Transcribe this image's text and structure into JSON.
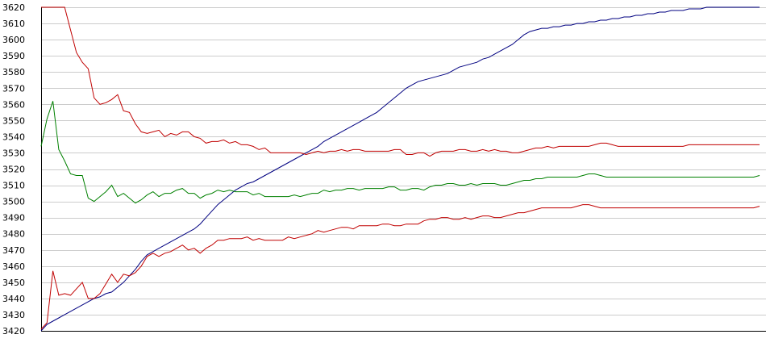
{
  "chart_data": {
    "type": "line",
    "title": "",
    "xlabel": "",
    "ylabel": "",
    "grid": true,
    "legend": "none",
    "x_tick_labels": false,
    "xlim": [
      0,
      122
    ],
    "ylim": [
      3420,
      3620
    ],
    "yticks": [
      3420,
      3430,
      3440,
      3450,
      3460,
      3470,
      3480,
      3490,
      3500,
      3510,
      3520,
      3530,
      3540,
      3550,
      3560,
      3570,
      3580,
      3590,
      3600,
      3610,
      3620
    ],
    "series": [
      {
        "color": "#000080",
        "values": [
          3420,
          3424,
          3426,
          3428,
          3430,
          3432,
          3434,
          3436,
          3438,
          3440,
          3441,
          3443,
          3444,
          3447,
          3450,
          3454,
          3458,
          3463,
          3467,
          3469,
          3471,
          3473,
          3475,
          3477,
          3479,
          3481,
          3483,
          3486,
          3490,
          3494,
          3498,
          3501,
          3504,
          3507,
          3509,
          3511,
          3512,
          3514,
          3516,
          3518,
          3520,
          3522,
          3524,
          3526,
          3528,
          3530,
          3532,
          3534,
          3537,
          3539,
          3541,
          3543,
          3545,
          3547,
          3549,
          3551,
          3553,
          3555,
          3558,
          3561,
          3564,
          3567,
          3570,
          3572,
          3574,
          3575,
          3576,
          3577,
          3578,
          3579,
          3581,
          3583,
          3584,
          3585,
          3586,
          3588,
          3589,
          3591,
          3593,
          3595,
          3597,
          3600,
          3603,
          3605,
          3606,
          3607,
          3607,
          3608,
          3608,
          3609,
          3609,
          3610,
          3610,
          3611,
          3611,
          3612,
          3612,
          3613,
          3613,
          3614,
          3614,
          3615,
          3615,
          3616,
          3616,
          3617,
          3617,
          3618,
          3618,
          3618,
          3619,
          3619,
          3619,
          3620,
          3620,
          3620,
          3620,
          3620,
          3620,
          3620,
          3620,
          3620,
          3620
        ]
      },
      {
        "color": "#c00000",
        "values": [
          3620,
          3620,
          3620,
          3620,
          3620,
          3606,
          3592,
          3586,
          3582,
          3564,
          3560,
          3561,
          3563,
          3566,
          3556,
          3555,
          3548,
          3543,
          3542,
          3543,
          3544,
          3540,
          3542,
          3541,
          3543,
          3543,
          3540,
          3539,
          3536,
          3537,
          3537,
          3538,
          3536,
          3537,
          3535,
          3535,
          3534,
          3532,
          3533,
          3530,
          3530,
          3530,
          3530,
          3530,
          3530,
          3529,
          3530,
          3531,
          3530,
          3531,
          3531,
          3532,
          3531,
          3532,
          3532,
          3531,
          3531,
          3531,
          3531,
          3531,
          3532,
          3532,
          3529,
          3529,
          3530,
          3530,
          3528,
          3530,
          3531,
          3531,
          3531,
          3532,
          3532,
          3531,
          3531,
          3532,
          3531,
          3532,
          3531,
          3531,
          3530,
          3530,
          3531,
          3532,
          3533,
          3533,
          3534,
          3533,
          3534,
          3534,
          3534,
          3534,
          3534,
          3534,
          3535,
          3536,
          3536,
          3535,
          3534,
          3534,
          3534,
          3534,
          3534,
          3534,
          3534,
          3534,
          3534,
          3534,
          3534,
          3534,
          3535,
          3535,
          3535,
          3535,
          3535,
          3535,
          3535,
          3535,
          3535,
          3535,
          3535,
          3535,
          3535
        ]
      },
      {
        "color": "#008000",
        "values": [
          3534,
          3551,
          3562,
          3532,
          3525,
          3517,
          3516,
          3516,
          3502,
          3500,
          3503,
          3506,
          3510,
          3503,
          3505,
          3502,
          3499,
          3501,
          3504,
          3506,
          3503,
          3505,
          3505,
          3507,
          3508,
          3505,
          3505,
          3502,
          3504,
          3505,
          3507,
          3506,
          3507,
          3506,
          3506,
          3506,
          3504,
          3505,
          3503,
          3503,
          3503,
          3503,
          3503,
          3504,
          3503,
          3504,
          3505,
          3505,
          3507,
          3506,
          3507,
          3507,
          3508,
          3508,
          3507,
          3508,
          3508,
          3508,
          3508,
          3509,
          3509,
          3507,
          3507,
          3508,
          3508,
          3507,
          3509,
          3510,
          3510,
          3511,
          3511,
          3510,
          3510,
          3511,
          3510,
          3511,
          3511,
          3511,
          3510,
          3510,
          3511,
          3512,
          3513,
          3513,
          3514,
          3514,
          3515,
          3515,
          3515,
          3515,
          3515,
          3515,
          3516,
          3517,
          3517,
          3516,
          3515,
          3515,
          3515,
          3515,
          3515,
          3515,
          3515,
          3515,
          3515,
          3515,
          3515,
          3515,
          3515,
          3515,
          3515,
          3515,
          3515,
          3515,
          3515,
          3515,
          3515,
          3515,
          3515,
          3515,
          3515,
          3515,
          3516
        ]
      },
      {
        "color": "#c00000",
        "values": [
          3421,
          3425,
          3457,
          3442,
          3443,
          3442,
          3446,
          3450,
          3440,
          3440,
          3443,
          3449,
          3455,
          3450,
          3455,
          3454,
          3456,
          3460,
          3466,
          3468,
          3466,
          3468,
          3469,
          3471,
          3473,
          3470,
          3471,
          3468,
          3471,
          3473,
          3476,
          3476,
          3477,
          3477,
          3477,
          3478,
          3476,
          3477,
          3476,
          3476,
          3476,
          3476,
          3478,
          3477,
          3478,
          3479,
          3480,
          3482,
          3481,
          3482,
          3483,
          3484,
          3484,
          3483,
          3485,
          3485,
          3485,
          3485,
          3486,
          3486,
          3485,
          3485,
          3486,
          3486,
          3486,
          3488,
          3489,
          3489,
          3490,
          3490,
          3489,
          3489,
          3490,
          3489,
          3490,
          3491,
          3491,
          3490,
          3490,
          3491,
          3492,
          3493,
          3493,
          3494,
          3495,
          3496,
          3496,
          3496,
          3496,
          3496,
          3496,
          3497,
          3498,
          3498,
          3497,
          3496,
          3496,
          3496,
          3496,
          3496,
          3496,
          3496,
          3496,
          3496,
          3496,
          3496,
          3496,
          3496,
          3496,
          3496,
          3496,
          3496,
          3496,
          3496,
          3496,
          3496,
          3496,
          3496,
          3496,
          3496,
          3496,
          3496,
          3497
        ]
      }
    ]
  }
}
